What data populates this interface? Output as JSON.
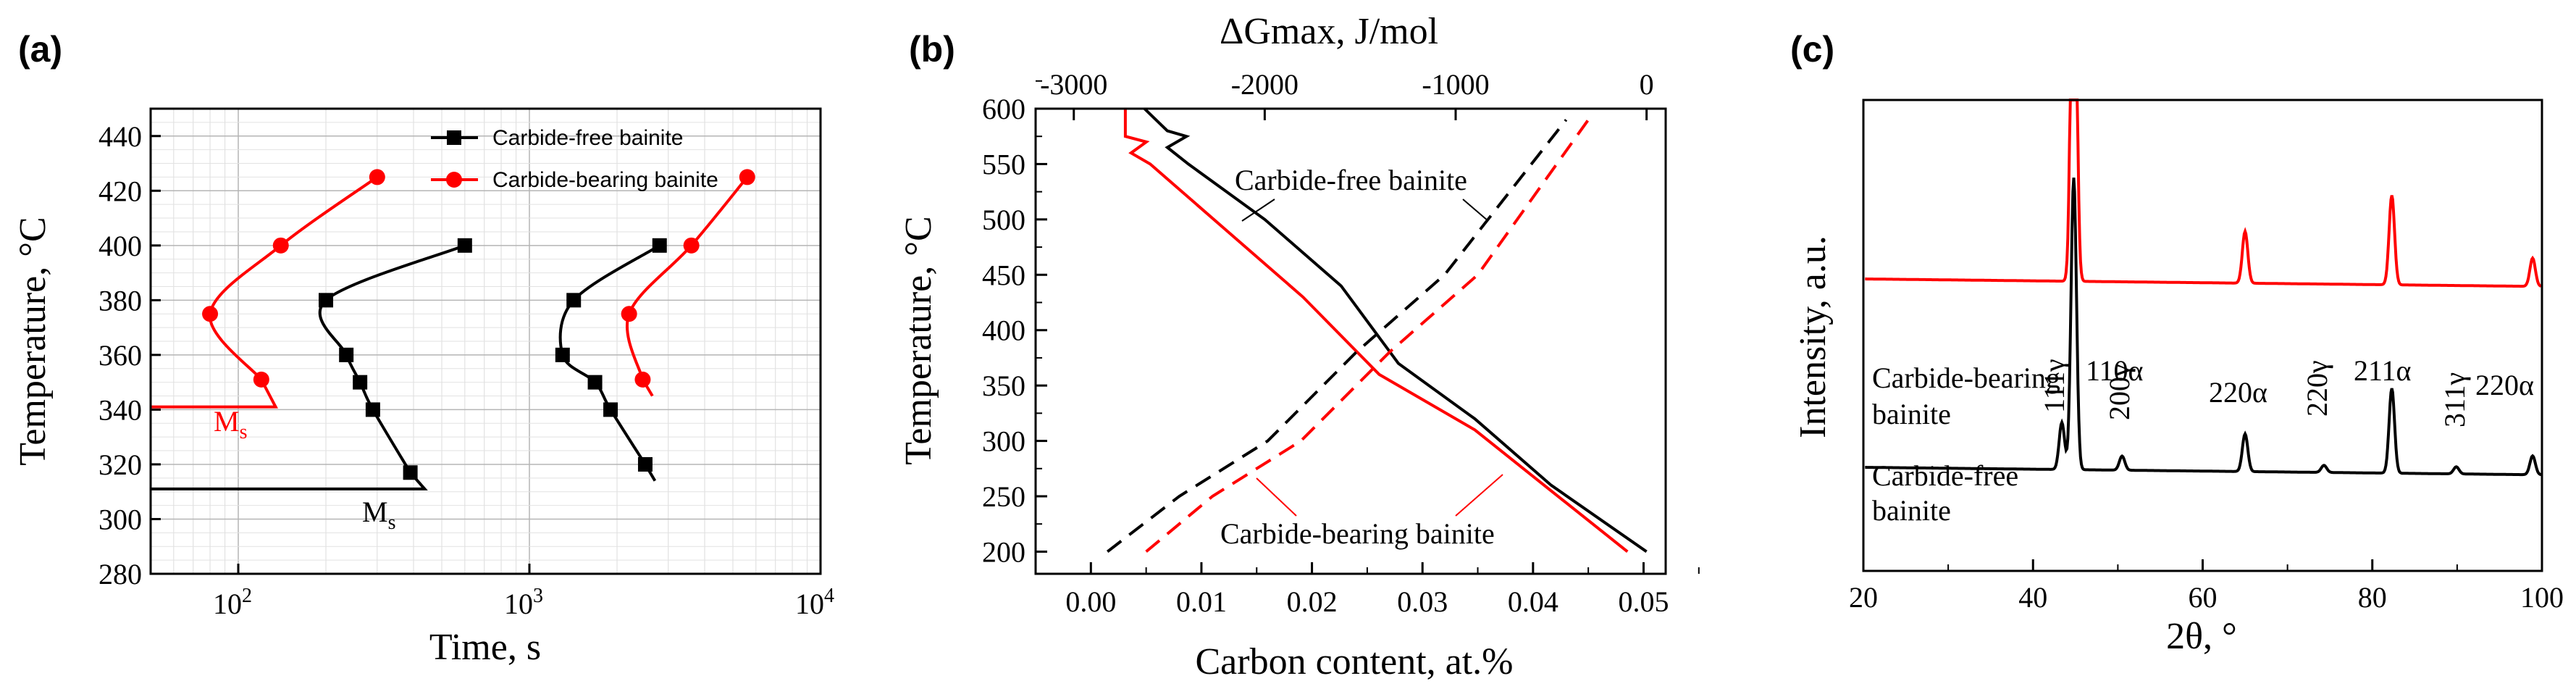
{
  "chart_data": [
    {
      "type": "line",
      "panel_label": "(a)",
      "xscale": "log",
      "xlim": [
        50,
        10000
      ],
      "ylim": [
        280,
        450
      ],
      "xlabel": "Time, s",
      "ylabel": "Temperature, °C",
      "x_ticks": [
        {
          "value": 100,
          "base": "10",
          "exp": "2"
        },
        {
          "value": 1000,
          "base": "10",
          "exp": "3"
        },
        {
          "value": 10000,
          "base": "10",
          "exp": "4"
        }
      ],
      "y_ticks": [
        280,
        300,
        320,
        340,
        360,
        380,
        400,
        420,
        440
      ],
      "grid": true,
      "legend": "top-right",
      "series": [
        {
          "name": "Carbide-free bainite",
          "color": "#000000",
          "marker": "square",
          "curves": [
            {
              "label": "start",
              "points": [
                [
                  600,
                  400
                ],
                [
                  200,
                  380
                ],
                [
                  235,
                  360
                ],
                [
                  262,
                  350
                ],
                [
                  290,
                  340
                ],
                [
                  390,
                  317
                ]
              ]
            },
            {
              "label": "finish",
              "points": [
                [
                  2800,
                  400
                ],
                [
                  1420,
                  380
                ],
                [
                  1300,
                  360
                ],
                [
                  1680,
                  350
                ],
                [
                  1900,
                  340
                ],
                [
                  2500,
                  320
                ]
              ]
            }
          ],
          "ms": {
            "label": "M",
            "sub": "s",
            "temperature": 311
          }
        },
        {
          "name": "Carbide-bearing bainite",
          "color": "#ff0000",
          "marker": "circle",
          "curves": [
            {
              "label": "start",
              "points": [
                [
                  300,
                  425
                ],
                [
                  140,
                  400
                ],
                [
                  80,
                  375
                ],
                [
                  120,
                  351
                ]
              ]
            },
            {
              "label": "finish",
              "points": [
                [
                  5600,
                  425
                ],
                [
                  3600,
                  400
                ],
                [
                  2200,
                  375
                ],
                [
                  2450,
                  351
                ]
              ]
            }
          ],
          "ms": {
            "label": "M",
            "sub": "s",
            "temperature": 341
          }
        }
      ]
    },
    {
      "type": "line",
      "panel_label": "(b)",
      "xlim": [
        -0.005,
        0.052
      ],
      "ylim": [
        180,
        600
      ],
      "x2lim": [
        -3200,
        100
      ],
      "xlabel": "Carbon content, at.%",
      "ylabel": "Temperature, °C",
      "x2label": "ΔGmax, J/mol",
      "x_ticks": [
        "0.00",
        "0.01",
        "0.02",
        "0.03",
        "0.04",
        "0.05"
      ],
      "x2_ticks": [
        "-3000",
        "-2000",
        "-1000",
        "0"
      ],
      "y_ticks": [
        200,
        250,
        300,
        350,
        400,
        450,
        500,
        550,
        600
      ],
      "annotations": [
        "Carbide-free bainite",
        "Carbide-bearing bainite"
      ],
      "series": [
        {
          "name": "Carbide-free bainite ΔGmax",
          "color": "#000000",
          "style": "solid",
          "axis": "top",
          "points": [
            [
              -2630,
              600
            ],
            [
              -2510,
              580
            ],
            [
              -2410,
              575
            ],
            [
              -2510,
              565
            ],
            [
              -2400,
              550
            ],
            [
              -2000,
              500
            ],
            [
              -1600,
              440
            ],
            [
              -1300,
              370
            ],
            [
              -900,
              320
            ],
            [
              -500,
              260
            ],
            [
              0,
              200
            ]
          ]
        },
        {
          "name": "Carbide-bearing bainite ΔGmax",
          "color": "#ff0000",
          "style": "solid",
          "axis": "top",
          "points": [
            [
              -2730,
              600
            ],
            [
              -2730,
              575
            ],
            [
              -2620,
              570
            ],
            [
              -2700,
              560
            ],
            [
              -2600,
              550
            ],
            [
              -2200,
              490
            ],
            [
              -1800,
              430
            ],
            [
              -1400,
              360
            ],
            [
              -900,
              310
            ],
            [
              -500,
              255
            ],
            [
              -100,
              200
            ]
          ]
        },
        {
          "name": "Carbide-free bainite carbon",
          "color": "#000000",
          "style": "dashed",
          "axis": "bottom",
          "points": [
            [
              0.0015,
              200
            ],
            [
              0.008,
              250
            ],
            [
              0.016,
              300
            ],
            [
              0.024,
              380
            ],
            [
              0.032,
              450
            ],
            [
              0.043,
              590
            ]
          ]
        },
        {
          "name": "Carbide-bearing bainite carbon",
          "color": "#ff0000",
          "style": "dashed",
          "axis": "bottom",
          "points": [
            [
              0.005,
              200
            ],
            [
              0.011,
              250
            ],
            [
              0.019,
              300
            ],
            [
              0.027,
              380
            ],
            [
              0.035,
              450
            ],
            [
              0.045,
              590
            ]
          ]
        }
      ]
    },
    {
      "type": "line",
      "panel_label": "(c)",
      "xlim": [
        20,
        100
      ],
      "xlabel": "2θ, °",
      "ylabel": "Intensity, a.u.",
      "x_ticks": [
        20,
        40,
        60,
        80,
        100
      ],
      "series": [
        {
          "name": "Carbide-bearing bainite",
          "color": "#ff0000",
          "baseline": 0.62,
          "peaks": [
            {
              "two_theta": 44.8,
              "height": 1.0
            },
            {
              "two_theta": 65.0,
              "height": 0.11
            },
            {
              "two_theta": 82.3,
              "height": 0.19
            },
            {
              "two_theta": 98.9,
              "height": 0.06
            }
          ]
        },
        {
          "name": "Carbide-free bainite",
          "color": "#000000",
          "baseline": 0.22,
          "peaks": [
            {
              "two_theta": 43.4,
              "height": 0.1
            },
            {
              "two_theta": 44.8,
              "height": 0.62
            },
            {
              "two_theta": 50.5,
              "height": 0.03
            },
            {
              "two_theta": 65.0,
              "height": 0.08
            },
            {
              "two_theta": 74.3,
              "height": 0.015
            },
            {
              "two_theta": 82.3,
              "height": 0.18
            },
            {
              "two_theta": 89.9,
              "height": 0.015
            },
            {
              "two_theta": 98.9,
              "height": 0.04
            }
          ]
        }
      ],
      "labels": {
        "carbide_bearing": [
          "Carbide-bearing",
          "bainite"
        ],
        "carbide_free": [
          "Carbide-free",
          "bainite"
        ],
        "p111g": "111γ",
        "p110a": "110α",
        "p200g": "200γ",
        "p220a": "220α",
        "p220g": "220γ",
        "p211a": "211α",
        "p311g": "311γ",
        "p220a_2": "220α"
      }
    }
  ]
}
